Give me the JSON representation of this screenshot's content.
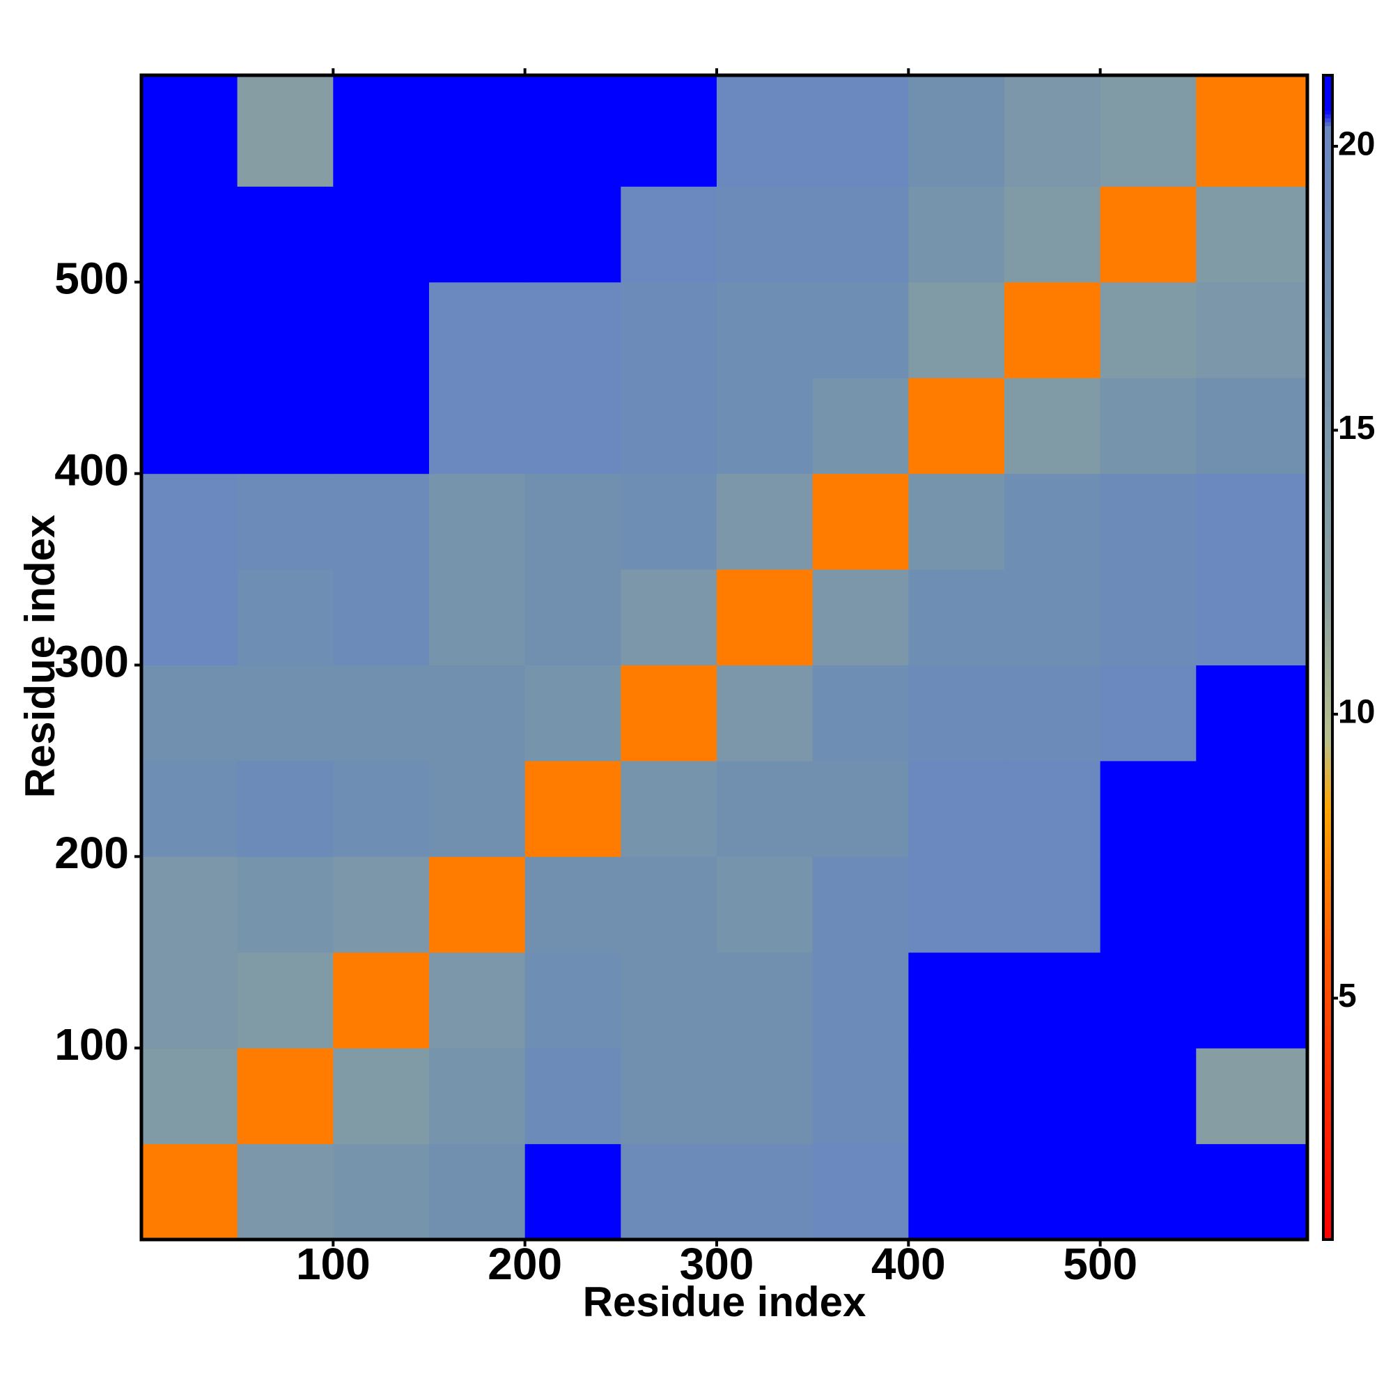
{
  "chart_data": {
    "type": "heatmap",
    "x_label": "Residue index",
    "y_label": "Residue index",
    "bins": [
      0,
      50,
      100,
      150,
      200,
      250,
      300,
      350,
      400,
      450,
      500,
      550,
      608
    ],
    "values": [
      [
        7,
        15,
        16,
        17,
        21,
        19,
        19,
        20,
        21,
        21,
        21,
        21
      ],
      [
        14,
        7,
        14,
        16,
        19,
        17,
        17,
        19,
        21,
        21,
        21,
        13
      ],
      [
        15,
        14,
        7,
        15,
        18,
        17,
        17,
        19,
        21,
        21,
        21,
        21
      ],
      [
        15,
        16,
        15,
        7,
        17,
        17,
        16,
        19,
        20,
        20,
        21,
        21
      ],
      [
        18,
        19,
        18,
        17,
        7,
        16,
        17,
        17,
        20,
        20,
        21,
        21
      ],
      [
        17,
        17,
        17,
        17,
        16,
        7,
        15,
        18,
        19,
        19,
        20,
        21
      ],
      [
        20,
        18,
        19,
        16,
        17,
        15,
        7,
        15,
        18,
        18,
        19,
        20
      ],
      [
        20,
        19,
        19,
        16,
        17,
        18,
        15,
        7,
        16,
        18,
        19,
        20
      ],
      [
        21,
        21,
        21,
        20,
        20,
        19,
        18,
        16,
        7,
        14,
        16,
        17
      ],
      [
        21,
        21,
        21,
        20,
        20,
        19,
        18,
        18,
        14,
        7,
        14,
        15
      ],
      [
        21,
        21,
        21,
        21,
        21,
        20,
        19,
        19,
        16,
        14,
        7,
        14
      ],
      [
        21,
        13,
        21,
        21,
        21,
        21,
        20,
        20,
        17,
        15,
        14,
        7
      ]
    ],
    "xlim": [
      0,
      608
    ],
    "ylim": [
      0,
      608
    ],
    "xticks": [
      100,
      200,
      300,
      400,
      500
    ],
    "yticks": [
      100,
      200,
      300,
      400,
      500
    ],
    "colorbar": {
      "lim": [
        0.75,
        21.25
      ],
      "ticks": [
        5,
        10,
        15,
        20
      ]
    }
  }
}
